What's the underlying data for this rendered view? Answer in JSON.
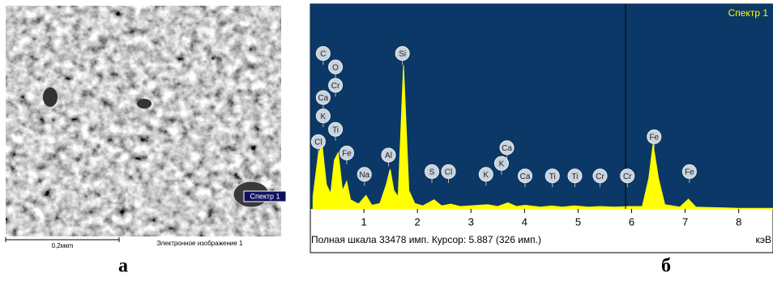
{
  "image_panel": {
    "marker_label": "Спектр 1",
    "scale_label": "0,2мкm",
    "caption": "Электронное изображение 1",
    "panel_letter": "а"
  },
  "chart_data": {
    "type": "area",
    "title": "Спектр 1",
    "panel_letter": "б",
    "x_unit": "кэВ",
    "status": "Полная шкала 33478 имп. Курсор: 5.887  (326 имп.)",
    "cursor": 5.887,
    "color": "#ffff00",
    "background": "#0b3866",
    "xlim": [
      0,
      8.64
    ],
    "ylim": [
      0,
      33478
    ],
    "xticks": [
      1,
      2,
      3,
      4,
      5,
      6,
      7,
      8
    ],
    "x": [
      0.05,
      0.15,
      0.22,
      0.3,
      0.38,
      0.45,
      0.52,
      0.6,
      0.68,
      0.75,
      0.9,
      1.04,
      1.15,
      1.3,
      1.42,
      1.49,
      1.56,
      1.64,
      1.74,
      1.84,
      1.95,
      2.1,
      2.31,
      2.45,
      2.62,
      2.8,
      3.31,
      3.5,
      3.69,
      3.85,
      4.01,
      4.3,
      4.51,
      4.7,
      4.93,
      5.2,
      5.41,
      5.7,
      5.95,
      6.2,
      6.32,
      6.4,
      6.5,
      6.62,
      6.9,
      7.06,
      7.2,
      8.0,
      8.64
    ],
    "values": [
      2000,
      9000,
      10500,
      4000,
      2500,
      8000,
      9200,
      3000,
      4500,
      1500,
      800,
      2200,
      600,
      900,
      4000,
      6500,
      3000,
      2000,
      23500,
      3000,
      900,
      500,
      1500,
      500,
      800,
      400,
      700,
      400,
      1000,
      400,
      600,
      300,
      500,
      300,
      500,
      300,
      400,
      300,
      400,
      400,
      5000,
      10600,
      5000,
      700,
      300,
      1600,
      300,
      100,
      100
    ],
    "peak_labels": [
      {
        "label": "C",
        "x": 0.24,
        "y": 25400
      },
      {
        "label": "O",
        "x": 0.47,
        "y": 23200
      },
      {
        "label": "Cr",
        "x": 0.47,
        "y": 20200
      },
      {
        "label": "Ca",
        "x": 0.24,
        "y": 18200
      },
      {
        "label": "K",
        "x": 0.24,
        "y": 15200
      },
      {
        "label": "Ti",
        "x": 0.47,
        "y": 13000
      },
      {
        "label": "Cl",
        "x": 0.15,
        "y": 11000
      },
      {
        "label": "Fe",
        "x": 0.68,
        "y": 9150
      },
      {
        "label": "Na",
        "x": 1.01,
        "y": 5650
      },
      {
        "label": "Al",
        "x": 1.46,
        "y": 8800
      },
      {
        "label": "Si",
        "x": 1.72,
        "y": 25400
      },
      {
        "label": "S",
        "x": 2.27,
        "y": 6100
      },
      {
        "label": "Cl",
        "x": 2.58,
        "y": 6100
      },
      {
        "label": "K",
        "x": 3.28,
        "y": 5650
      },
      {
        "label": "Ca",
        "x": 3.67,
        "y": 10000
      },
      {
        "label": "K",
        "x": 3.57,
        "y": 7450
      },
      {
        "label": "Ca",
        "x": 4.01,
        "y": 5400
      },
      {
        "label": "Ti",
        "x": 4.52,
        "y": 5400
      },
      {
        "label": "Ti",
        "x": 4.94,
        "y": 5400
      },
      {
        "label": "Cr",
        "x": 5.41,
        "y": 5400
      },
      {
        "label": "Cr",
        "x": 5.92,
        "y": 5400
      },
      {
        "label": "Fe",
        "x": 6.42,
        "y": 11800
      },
      {
        "label": "Fe",
        "x": 7.08,
        "y": 6100
      }
    ]
  }
}
